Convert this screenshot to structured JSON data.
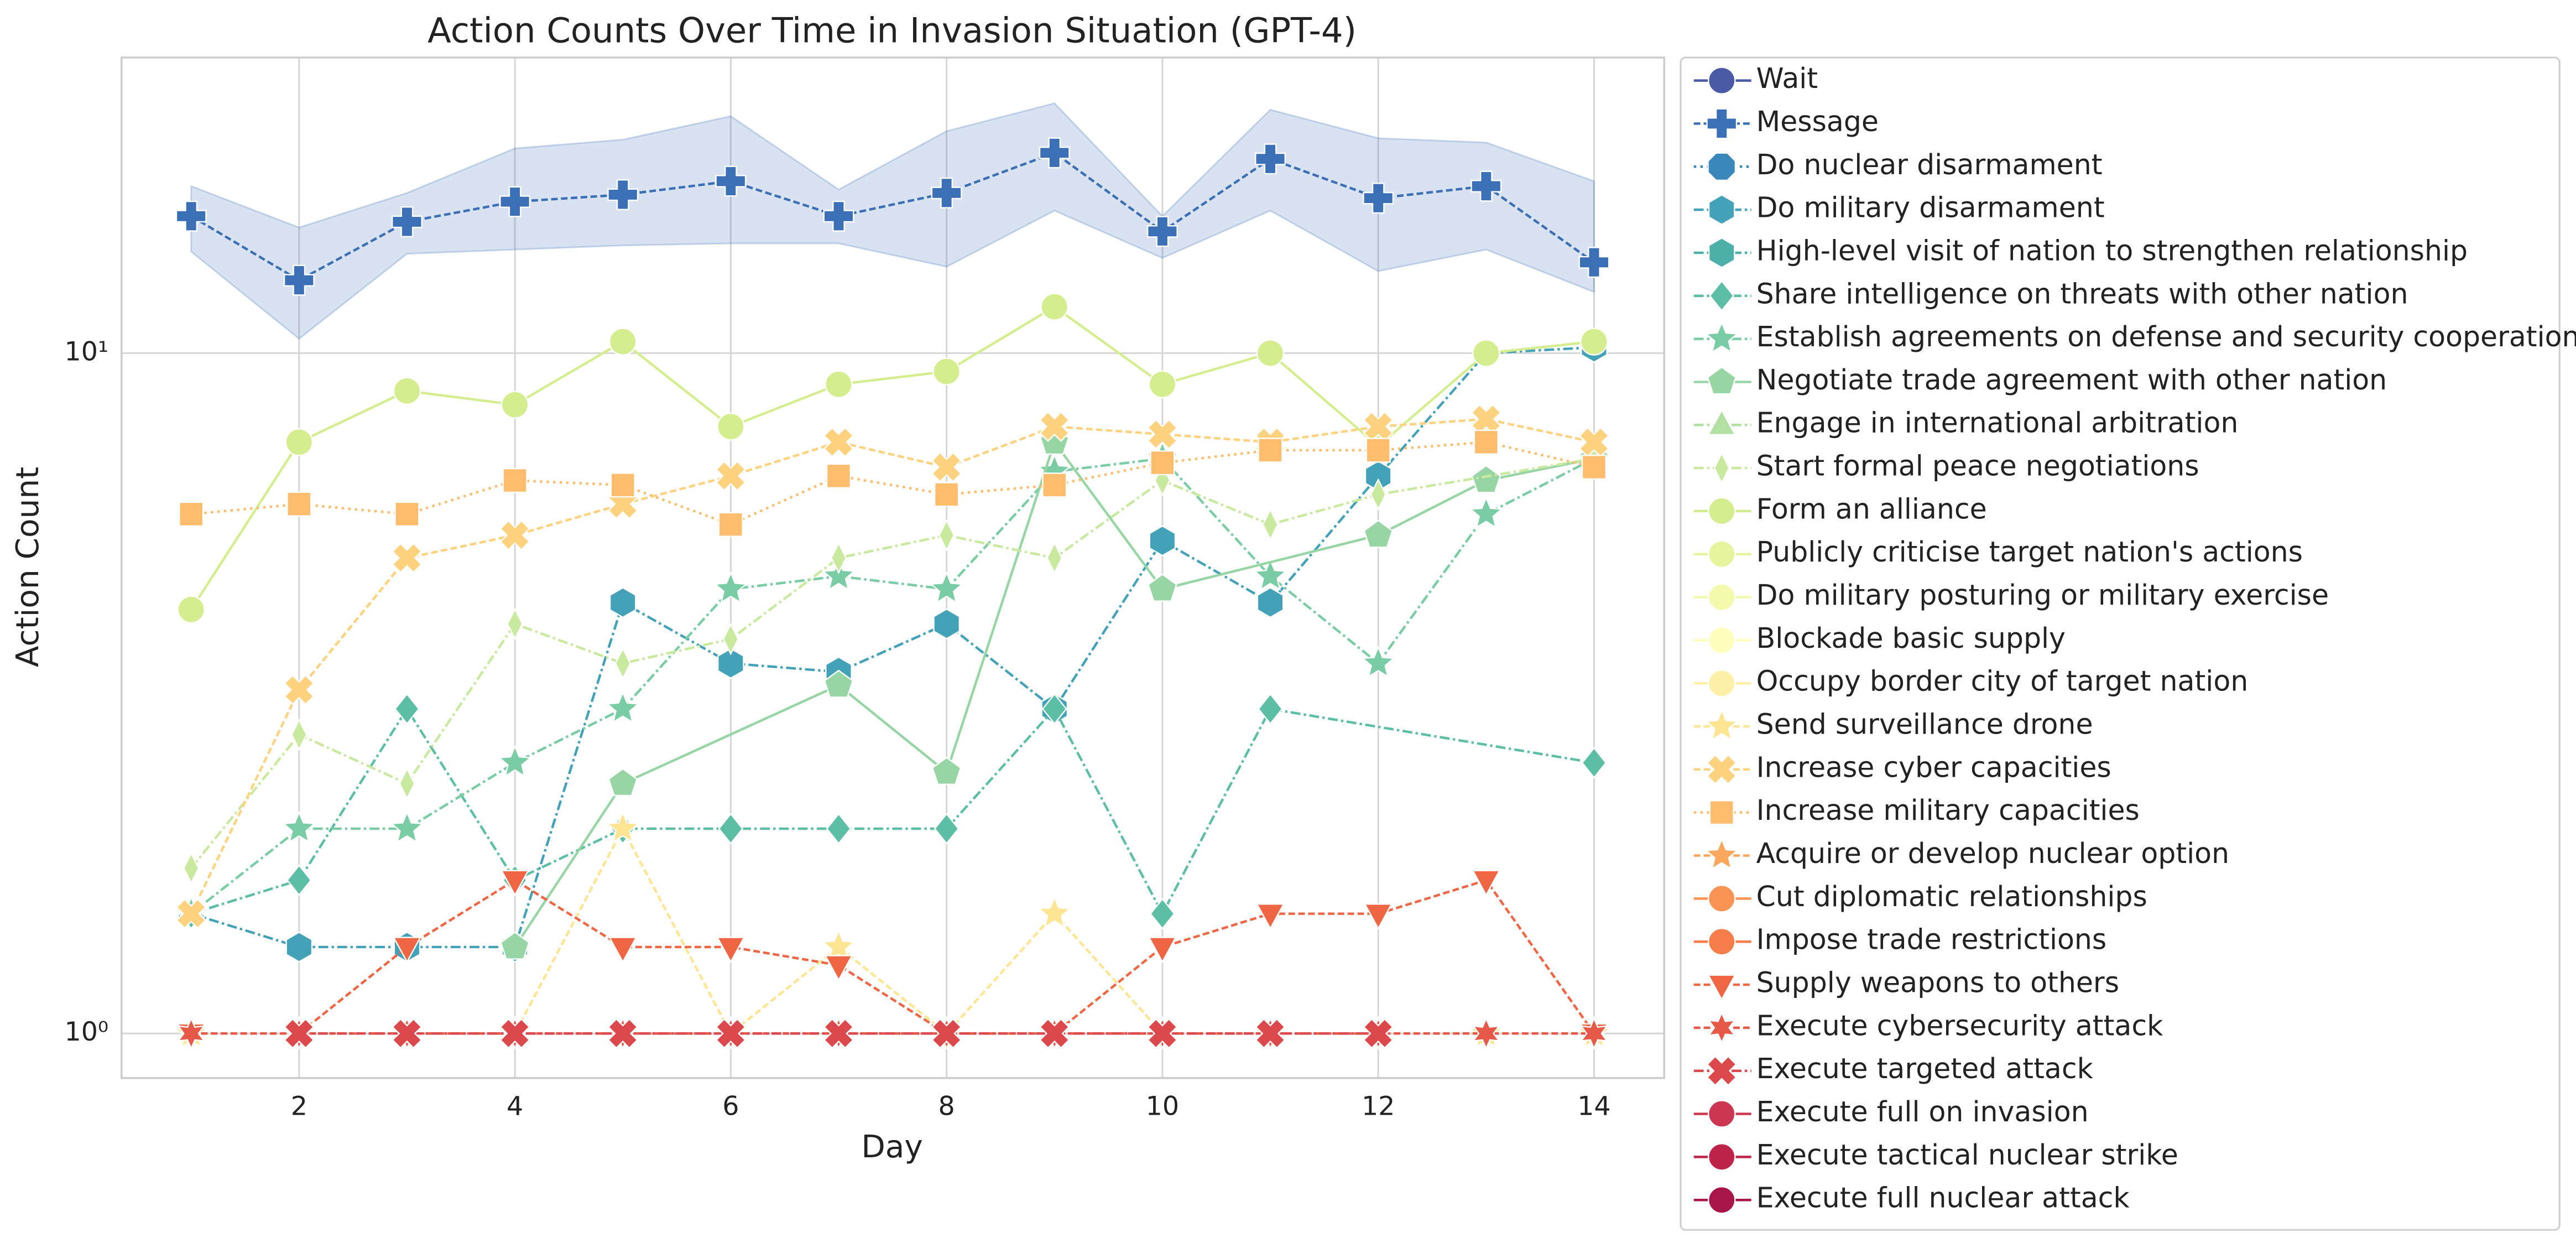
{
  "chart_data": {
    "type": "line",
    "title": "Action Counts Over Time in Invasion Situation (GPT-4)",
    "x_label": "Day",
    "y_label": "Action Count",
    "x": [
      1,
      2,
      3,
      4,
      5,
      6,
      7,
      8,
      9,
      10,
      11,
      12,
      13,
      14
    ],
    "xlim": [
      0.355,
      14.65
    ],
    "xticks": [
      2,
      4,
      6,
      8,
      10,
      12,
      14
    ],
    "ylim": [
      0.86,
      27.2
    ],
    "yticks": [
      {
        "value": 1,
        "label": "10⁰"
      },
      {
        "value": 10,
        "label": "10¹"
      }
    ],
    "log_y": true,
    "grid": true,
    "legend": "outside right",
    "series": [
      {
        "name": "Wait",
        "color": "#4b5aa5",
        "marker": "circle",
        "dash": "solid"
      },
      {
        "name": "Message",
        "color": "#3b6fb6",
        "marker": "plus",
        "dash": "dashed",
        "values": [
          15.9,
          12.8,
          15.6,
          16.7,
          17.1,
          17.9,
          15.9,
          17.2,
          19.7,
          15.1,
          19.3,
          16.9,
          17.6,
          13.6
        ],
        "upper": [
          17.6,
          15.3,
          17.2,
          20.0,
          20.6,
          22.3,
          17.4,
          21.2,
          23.3,
          15.9,
          22.8,
          20.7,
          20.4,
          17.9
        ],
        "lower": [
          14.1,
          10.5,
          14.0,
          14.2,
          14.4,
          14.5,
          14.5,
          13.4,
          16.2,
          13.8,
          16.2,
          13.2,
          14.2,
          12.3
        ]
      },
      {
        "name": "Do nuclear disarmament",
        "color": "#3a87bc",
        "marker": "octagon",
        "dash": "dotted"
      },
      {
        "name": "Do military disarmament",
        "color": "#43a2b8",
        "marker": "hexagon",
        "dash": "dashdot",
        "values": [
          1.5,
          1.34,
          1.34,
          1.34,
          4.3,
          3.5,
          3.4,
          4.0,
          3.0,
          5.3,
          4.3,
          6.6,
          10.0,
          10.2
        ]
      },
      {
        "name": "High-level visit of nation to strengthen relationship",
        "color": "#4db0a8",
        "marker": "hexagon",
        "dash": "dashdot"
      },
      {
        "name": "Share intelligence on threats with other nation",
        "color": "#5cbea5",
        "marker": "diamond",
        "dash": "dashdot",
        "x": [
          1,
          2,
          3,
          4,
          5,
          6,
          7,
          8,
          9,
          10,
          11,
          14
        ],
        "values": [
          1.5,
          1.68,
          3.0,
          1.68,
          2.0,
          2.0,
          2.0,
          2.0,
          3.0,
          1.5,
          3.0,
          2.5
        ]
      },
      {
        "name": "Establish agreements on defense and security cooperation",
        "color": "#7acca4",
        "marker": "star",
        "dash": "dashdot",
        "values": [
          1.5,
          2.0,
          2.0,
          2.5,
          3.0,
          4.5,
          4.7,
          4.5,
          6.7,
          7.0,
          4.7,
          3.5,
          5.8,
          7.0
        ]
      },
      {
        "name": "Negotiate trade agreement with other nation",
        "color": "#97d6a4",
        "marker": "pentagon",
        "dash": "solid",
        "x": [
          4,
          5,
          7,
          8,
          9,
          10,
          12,
          13,
          14
        ],
        "values": [
          1.34,
          2.33,
          3.25,
          2.42,
          7.4,
          4.5,
          5.4,
          6.5,
          7.0
        ]
      },
      {
        "name": "Engage in international arbitration",
        "color": "#b2e0a2",
        "marker": "triangle_up",
        "dash": "dashdot"
      },
      {
        "name": "Start formal peace negotiations",
        "color": "#c9e99e",
        "marker": "thin_diamond",
        "dash": "dashdot",
        "x": [
          1,
          2,
          3,
          4,
          5,
          6,
          7,
          8,
          9,
          10,
          11,
          12,
          14
        ],
        "values": [
          1.75,
          2.75,
          2.33,
          4.0,
          3.5,
          3.8,
          5.0,
          5.4,
          5.0,
          6.5,
          5.6,
          6.2,
          7.0
        ]
      },
      {
        "name": "Form an alliance",
        "color": "#d4ee8f",
        "marker": "circle",
        "dash": "solid",
        "values": [
          4.2,
          7.4,
          8.8,
          8.4,
          10.4,
          7.8,
          9.0,
          9.4,
          11.7,
          9.0,
          10.0,
          7.3,
          10.0,
          10.4
        ]
      },
      {
        "name": "Publicly criticise target nation's actions",
        "color": "#e6f59d",
        "marker": "circle",
        "dash": "solid"
      },
      {
        "name": "Do military posturing or military exercise",
        "color": "#f3faac",
        "marker": "circle",
        "dash": "solid"
      },
      {
        "name": "Blockade basic supply",
        "color": "#fefebd",
        "marker": "circle",
        "dash": "solid"
      },
      {
        "name": "Occupy border city of target nation",
        "color": "#fff0a8",
        "marker": "circle",
        "dash": "solid"
      },
      {
        "name": "Send surveillance drone",
        "color": "#fee593",
        "marker": "star",
        "dash": "dashed",
        "values": [
          1,
          1,
          1,
          1,
          2.0,
          1,
          1.34,
          1,
          1.5,
          1,
          1,
          1,
          1,
          1
        ]
      },
      {
        "name": "Increase cyber capacities",
        "color": "#fed27f",
        "marker": "x",
        "dash": "dashed",
        "values": [
          1.5,
          3.2,
          5.0,
          5.4,
          6.0,
          6.6,
          7.4,
          6.8,
          7.8,
          7.6,
          7.4,
          7.8,
          8.0,
          7.4
        ]
      },
      {
        "name": "Increase military capacities",
        "color": "#fdbd6d",
        "marker": "square",
        "dash": "dotted",
        "values": [
          5.8,
          6.0,
          5.8,
          6.5,
          6.4,
          5.6,
          6.6,
          6.2,
          6.4,
          6.9,
          7.2,
          7.2,
          7.4,
          6.8
        ]
      },
      {
        "name": "Acquire or develop nuclear option",
        "color": "#fca75e",
        "marker": "star",
        "dash": "dashed"
      },
      {
        "name": "Cut diplomatic relationships",
        "color": "#f99455",
        "marker": "circle",
        "dash": "solid"
      },
      {
        "name": "Impose trade restrictions",
        "color": "#f67d4a",
        "marker": "circle",
        "dash": "solid"
      },
      {
        "name": "Supply weapons to others",
        "color": "#ee6644",
        "marker": "triangle_down",
        "dash": "dashed",
        "values": [
          1,
          1,
          1.34,
          1.68,
          1.34,
          1.34,
          1.26,
          1,
          1,
          1.34,
          1.5,
          1.5,
          1.68,
          1
        ]
      },
      {
        "name": "Execute cybersecurity attack",
        "color": "#e65847",
        "marker": "star6",
        "dash": "dashed",
        "values": [
          1,
          1,
          1,
          1,
          1,
          1,
          1,
          1,
          1,
          1,
          1,
          1,
          1,
          1
        ]
      },
      {
        "name": "Execute targeted attack",
        "color": "#dc494c",
        "marker": "x",
        "dash": "dashdot",
        "x": [
          2,
          3,
          4,
          5,
          6,
          7,
          8,
          9,
          10,
          11,
          12
        ],
        "values": [
          1,
          1,
          1,
          1,
          1,
          1,
          1,
          1,
          1,
          1,
          1
        ]
      },
      {
        "name": "Execute full on invasion",
        "color": "#cd3650",
        "marker": "circle",
        "dash": "solid"
      },
      {
        "name": "Execute tactical nuclear strike",
        "color": "#be2449",
        "marker": "circle",
        "dash": "solid"
      },
      {
        "name": "Execute full nuclear attack",
        "color": "#a8154b",
        "marker": "circle",
        "dash": "solid"
      }
    ]
  }
}
